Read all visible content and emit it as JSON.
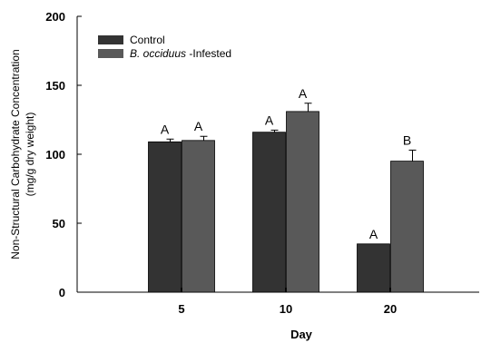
{
  "chart_data": {
    "type": "bar",
    "categories": [
      "5",
      "10",
      "20"
    ],
    "series": [
      {
        "name": "Control",
        "values": [
          109,
          116,
          35
        ],
        "errors": [
          2,
          1.5,
          0
        ],
        "labels": [
          "A",
          "A",
          "A"
        ],
        "color": "#333333"
      },
      {
        "name_italic": "B. occiduus",
        "name_suffix": " -Infested",
        "values": [
          110,
          131,
          95
        ],
        "errors": [
          3,
          6,
          8
        ],
        "labels": [
          "A",
          "A",
          "B"
        ],
        "color": "#595959"
      }
    ],
    "xlabel": "Day",
    "ylabel_line1": "Non-Structural Carbohydrate Concentration",
    "ylabel_line2": "(mg/g dry weight)",
    "ylim": [
      0,
      200
    ],
    "yticks": [
      "0",
      "50",
      "100",
      "150",
      "200"
    ],
    "legend_position": "top-left",
    "grid": false
  }
}
